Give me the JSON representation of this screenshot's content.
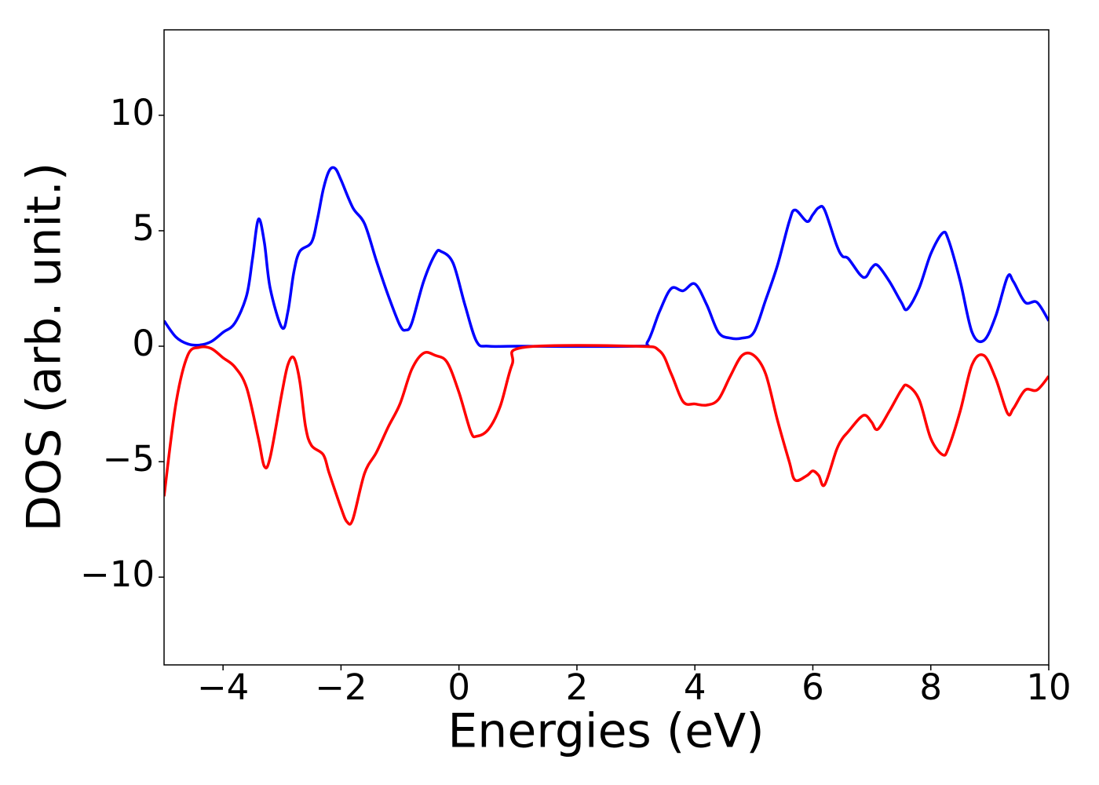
{
  "chart_data": {
    "type": "line",
    "xlabel": "Energies (eV)",
    "ylabel": "DOS (arb. unit.)",
    "xlim": [
      -5,
      10
    ],
    "ylim": [
      -13.8,
      13.7
    ],
    "xticks": [
      {
        "value": -4,
        "label": "−4"
      },
      {
        "value": -2,
        "label": "−2"
      },
      0,
      2,
      4,
      6,
      8,
      10
    ],
    "yticks": [
      {
        "value": -10,
        "label": "−10"
      },
      {
        "value": -5,
        "label": "−5"
      },
      0,
      5,
      10
    ],
    "series": [
      {
        "color": "#0000ff",
        "x": [
          -5,
          -4.8,
          -4.6,
          -4.4,
          -4.2,
          -4.0,
          -3.8,
          -3.6,
          -3.5,
          -3.4,
          -3.3,
          -3.2,
          -3.0,
          -2.9,
          -2.8,
          -2.7,
          -2.5,
          -2.4,
          -2.3,
          -2.2,
          -2.1,
          -2.0,
          -1.8,
          -1.6,
          -1.4,
          -1.2,
          -1.0,
          -0.9,
          -0.8,
          -0.6,
          -0.4,
          -0.3,
          -0.1,
          0.1,
          0.3,
          0.5,
          1.0,
          3.0,
          3.2,
          3.4,
          3.6,
          3.8,
          4.0,
          4.2,
          4.4,
          4.6,
          4.8,
          5.0,
          5.2,
          5.4,
          5.6,
          5.7,
          5.9,
          6.0,
          6.1,
          6.2,
          6.4,
          6.5,
          6.6,
          6.8,
          6.9,
          7.0,
          7.1,
          7.3,
          7.5,
          7.6,
          7.8,
          8.0,
          8.2,
          8.3,
          8.5,
          8.7,
          8.9,
          9.1,
          9.3,
          9.4,
          9.6,
          9.8,
          10
        ],
        "values": [
          1.1,
          0.4,
          0.1,
          0.05,
          0.2,
          0.6,
          1.0,
          2.2,
          3.8,
          5.5,
          4.5,
          2.5,
          0.8,
          1.5,
          3.2,
          4.1,
          4.5,
          5.5,
          6.8,
          7.6,
          7.7,
          7.2,
          6.0,
          5.3,
          3.7,
          2.2,
          0.9,
          0.7,
          1.0,
          2.8,
          4.0,
          4.1,
          3.6,
          1.8,
          0.2,
          0.0,
          0,
          0,
          0.2,
          1.5,
          2.5,
          2.4,
          2.7,
          1.8,
          0.6,
          0.35,
          0.35,
          0.6,
          2.0,
          3.5,
          5.4,
          5.9,
          5.4,
          5.7,
          6.0,
          5.9,
          4.4,
          3.9,
          3.8,
          3.1,
          3.0,
          3.4,
          3.5,
          2.8,
          1.9,
          1.6,
          2.5,
          4.0,
          4.9,
          4.6,
          2.8,
          0.6,
          0.25,
          1.3,
          3.0,
          2.8,
          1.9,
          1.9,
          1.1
        ]
      },
      {
        "color": "#ff0000",
        "x": [
          -5,
          -4.8,
          -4.6,
          -4.4,
          -4.2,
          -4.0,
          -3.8,
          -3.6,
          -3.4,
          -3.3,
          -3.2,
          -3.0,
          -2.9,
          -2.8,
          -2.7,
          -2.6,
          -2.5,
          -2.3,
          -2.2,
          -2.0,
          -1.9,
          -1.8,
          -1.6,
          -1.4,
          -1.2,
          -1.0,
          -0.8,
          -0.6,
          -0.4,
          -0.2,
          0.0,
          0.2,
          0.3,
          0.5,
          0.7,
          0.9,
          1.1,
          3.0,
          3.4,
          3.6,
          3.8,
          4.0,
          4.2,
          4.4,
          4.6,
          4.8,
          5.0,
          5.2,
          5.4,
          5.6,
          5.7,
          5.9,
          6.0,
          6.1,
          6.2,
          6.4,
          6.5,
          6.6,
          6.8,
          6.9,
          7.0,
          7.1,
          7.3,
          7.5,
          7.6,
          7.8,
          8.0,
          8.2,
          8.3,
          8.5,
          8.7,
          8.9,
          9.1,
          9.3,
          9.4,
          9.6,
          9.8,
          10
        ],
        "values": [
          -6.5,
          -2.5,
          -0.4,
          -0.05,
          -0.1,
          -0.5,
          -0.9,
          -1.8,
          -4.0,
          -5.2,
          -4.8,
          -2.0,
          -0.8,
          -0.5,
          -1.5,
          -3.5,
          -4.3,
          -4.7,
          -5.5,
          -7.0,
          -7.6,
          -7.5,
          -5.5,
          -4.6,
          -3.5,
          -2.5,
          -1.0,
          -0.3,
          -0.4,
          -0.7,
          -2.0,
          -3.7,
          -3.9,
          -3.6,
          -2.6,
          -0.8,
          -0.05,
          0,
          -0.2,
          -1.2,
          -2.4,
          -2.5,
          -2.55,
          -2.3,
          -1.3,
          -0.4,
          -0.4,
          -1.2,
          -3.2,
          -5.0,
          -5.8,
          -5.6,
          -5.4,
          -5.6,
          -6.0,
          -4.5,
          -4.0,
          -3.7,
          -3.1,
          -3.0,
          -3.3,
          -3.6,
          -2.8,
          -1.9,
          -1.7,
          -2.3,
          -4.0,
          -4.7,
          -4.4,
          -2.8,
          -0.8,
          -0.4,
          -1.4,
          -2.9,
          -2.7,
          -1.9,
          -1.9,
          -1.3
        ]
      }
    ]
  }
}
